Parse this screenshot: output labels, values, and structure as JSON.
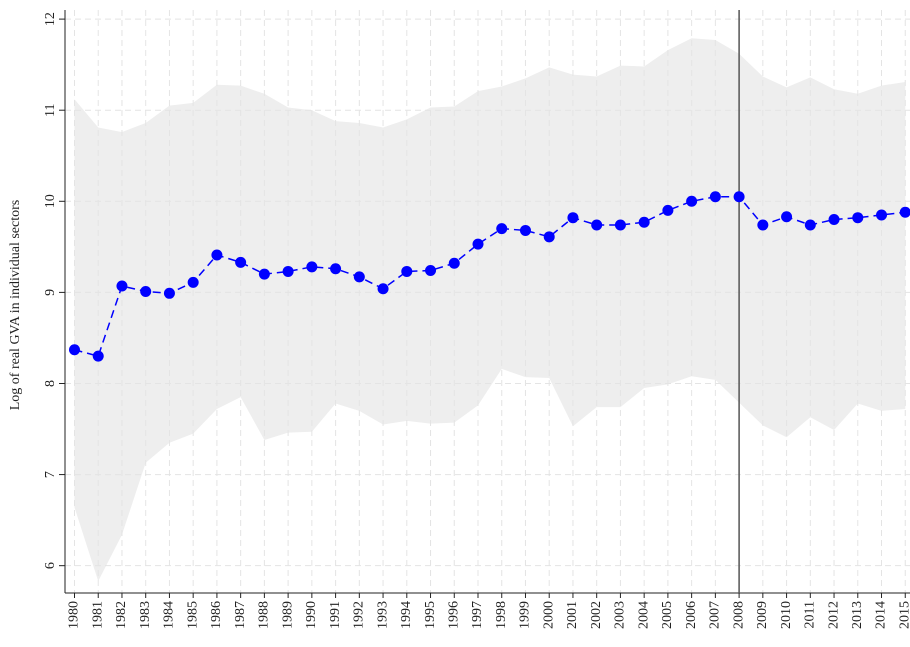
{
  "chart_data": {
    "type": "line",
    "ylabel": "Log of real GVA in individual sectors",
    "x": [
      1980,
      1981,
      1982,
      1983,
      1984,
      1985,
      1986,
      1987,
      1988,
      1989,
      1990,
      1991,
      1992,
      1993,
      1994,
      1995,
      1996,
      1997,
      1998,
      1999,
      2000,
      2001,
      2002,
      2003,
      2004,
      2005,
      2006,
      2007,
      2008,
      2009,
      2010,
      2011,
      2012,
      2013,
      2014,
      2015
    ],
    "series": [
      {
        "color": "#0000ff",
        "values": [
          8.37,
          8.3,
          9.07,
          9.01,
          8.99,
          9.11,
          9.41,
          9.33,
          9.2,
          9.23,
          9.28,
          9.26,
          9.17,
          9.04,
          9.23,
          9.24,
          9.32,
          9.53,
          9.7,
          9.68,
          9.61,
          9.82,
          9.74,
          9.74,
          9.77,
          9.9,
          10.0,
          10.05,
          10.05,
          9.74,
          9.83,
          9.74,
          9.8,
          9.82,
          9.85,
          9.88
        ]
      }
    ],
    "band": {
      "color": "#eeeeee",
      "upper": [
        11.12,
        10.81,
        10.76,
        10.86,
        11.05,
        11.08,
        11.28,
        11.27,
        11.18,
        11.03,
        11.0,
        10.88,
        10.86,
        10.81,
        10.9,
        11.03,
        11.04,
        11.21,
        11.26,
        11.35,
        11.47,
        11.39,
        11.37,
        11.49,
        11.48,
        11.66,
        11.79,
        11.77,
        11.62,
        11.37,
        11.25,
        11.36,
        11.23,
        11.18,
        11.27,
        11.31
      ],
      "lower": [
        6.64,
        5.83,
        6.34,
        7.13,
        7.35,
        7.45,
        7.72,
        7.85,
        7.38,
        7.46,
        7.47,
        7.78,
        7.7,
        7.55,
        7.59,
        7.56,
        7.57,
        7.76,
        8.16,
        8.07,
        8.06,
        7.53,
        7.74,
        7.74,
        7.95,
        7.99,
        8.08,
        8.04,
        7.79,
        7.54,
        7.41,
        7.63,
        7.49,
        7.78,
        7.7,
        7.72
      ]
    },
    "vline": 2008,
    "xlim": [
      1979.6,
      2015.2
    ],
    "xticks": [
      1980,
      1981,
      1982,
      1983,
      1984,
      1985,
      1986,
      1987,
      1988,
      1989,
      1990,
      1991,
      1992,
      1993,
      1994,
      1995,
      1996,
      1997,
      1998,
      1999,
      2000,
      2001,
      2002,
      2003,
      2004,
      2005,
      2006,
      2007,
      2008,
      2009,
      2010,
      2011,
      2012,
      2013,
      2014,
      2015
    ],
    "ylim": [
      5.7,
      12.1
    ],
    "yticks": [
      6,
      7,
      8,
      9,
      10,
      11,
      12
    ],
    "grid": true
  }
}
